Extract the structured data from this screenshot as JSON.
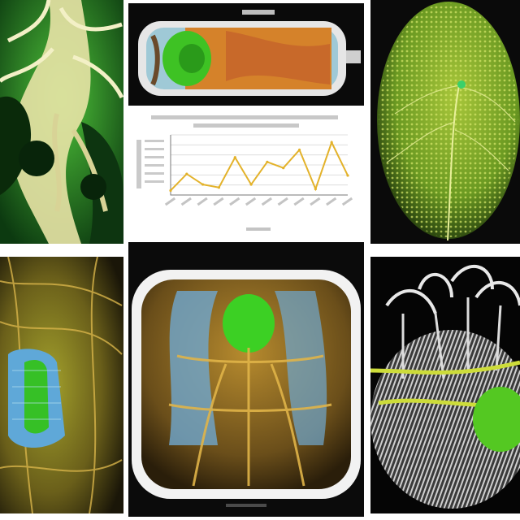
{
  "panels": {
    "top_left": {
      "icon": "branching-structure-illustration"
    },
    "top_center": {
      "icon": "tube-cross-section-illustration",
      "header_color": "#e6e6e6"
    },
    "chart": {
      "line_color": "#e3b22a"
    },
    "top_right": {
      "icon": "green-leaf-texture-illustration"
    },
    "bottom_left": {
      "icon": "vein-network-illustration"
    },
    "bottom_center": {
      "icon": "framed-organ-illustration"
    },
    "bottom_right": {
      "icon": "fibrous-tissue-illustration"
    }
  },
  "chart_data": {
    "type": "line",
    "title": "",
    "xlabel": "",
    "ylabel": "",
    "x": [
      1,
      2,
      3,
      4,
      5,
      6,
      7,
      8,
      9,
      10,
      11,
      12
    ],
    "series": [
      {
        "values": [
          6,
          28,
          14,
          10,
          50,
          14,
          44,
          36,
          60,
          8,
          70,
          26
        ]
      }
    ],
    "ylim": [
      0,
      80
    ],
    "grid": true,
    "legend": "none"
  }
}
